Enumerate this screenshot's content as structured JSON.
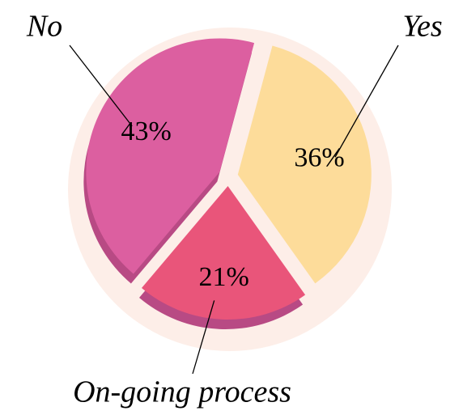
{
  "chart_data": {
    "type": "pie",
    "categories": [
      "Yes",
      "On-going process",
      "No"
    ],
    "values": [
      36,
      21,
      43
    ],
    "value_labels": [
      "36%",
      "21%",
      "43%"
    ],
    "colors": [
      "#fddc9a",
      "#e9557a",
      "#dc5fa0"
    ]
  }
}
